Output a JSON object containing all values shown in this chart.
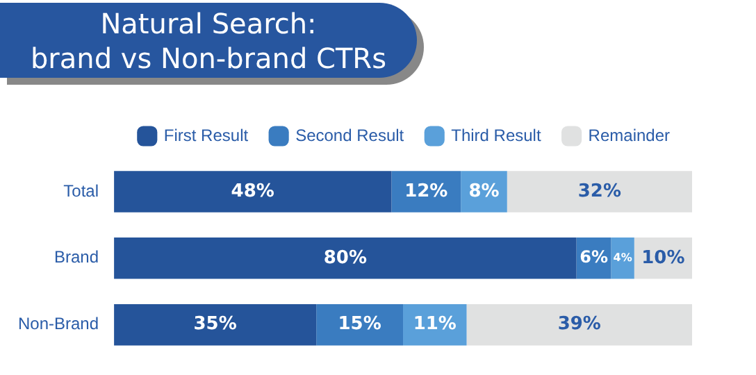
{
  "chart_data": {
    "type": "bar",
    "orientation": "horizontal",
    "stacked": true,
    "title": "Natural Search:\nbrand vs Non-brand CTRs",
    "categories": [
      "Total",
      "Brand",
      "Non-Brand"
    ],
    "legend": "top",
    "series": [
      {
        "name": "First Result",
        "color": "#25549a",
        "values": [
          48,
          80,
          35
        ],
        "value_labels": [
          "48%",
          "80%",
          "35%"
        ]
      },
      {
        "name": "Second Result",
        "color": "#3a7cc0",
        "values": [
          12,
          6,
          15
        ],
        "value_labels": [
          "12%",
          "6%",
          "15%"
        ]
      },
      {
        "name": "Third Result",
        "color": "#5aa0da",
        "values": [
          8,
          4,
          11
        ],
        "value_labels": [
          "8%",
          "4%",
          "11%"
        ]
      },
      {
        "name": "Remainder",
        "color": "#e0e1e1",
        "values": [
          32,
          10,
          39
        ],
        "value_labels": [
          "32%",
          "10%",
          "39%"
        ]
      }
    ]
  }
}
